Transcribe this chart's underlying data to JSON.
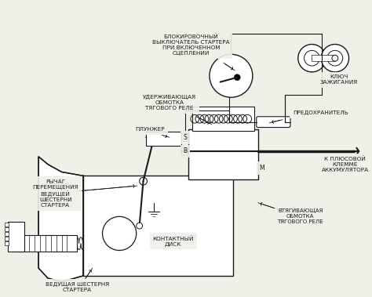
{
  "background_color": "#f0efe8",
  "line_color": "#1a1a1a",
  "text_color": "#1a1a1a",
  "labels": {
    "blokirovochny": "БЛОКИРОВОЧНЫЙ\nВЫКЛЮЧАТЕЛЬ СТАРТЕРА\nПРИ ВКЛЮЧЕННОМ\nСЦЕПЛЕНИИ",
    "uderzhivayushchaya": "УДЕРЖИВАЮЩАЯ\nОБМОТКА\nТЯГОВОГО РЕЛЕ",
    "plunzher": "ПЛУНЖЕР",
    "rychag": "РЫЧАГ\nПЕРЕМЕЩЕНИЯ\nВЕДУЩЕЙ\nШЕСТЕРНИ\nСТАРТЕРА",
    "veduschaya": "ВЕДУЩАЯ ШЕСТЕРНЯ\nСТАРТЕРА",
    "kontaktny": "КОНТАКТНЫЙ\nДИСК",
    "vtyagivayushchaya": "ВТЯГИВАЮЩАЯ\nОБМОТКА\nТЯГОВОГО РЕЛЕ",
    "k_plyusovoy": "К ПЛЮСОВОЙ\nКЛЕММЕ\nАККУМУЛЯТОРА",
    "predokhranitel": "ПРЕДОХРАНИТЕЛЬ",
    "klyuch": "КЛЮЧ\nЗАЖИГАНИЯ"
  },
  "fontsize": 5.2
}
